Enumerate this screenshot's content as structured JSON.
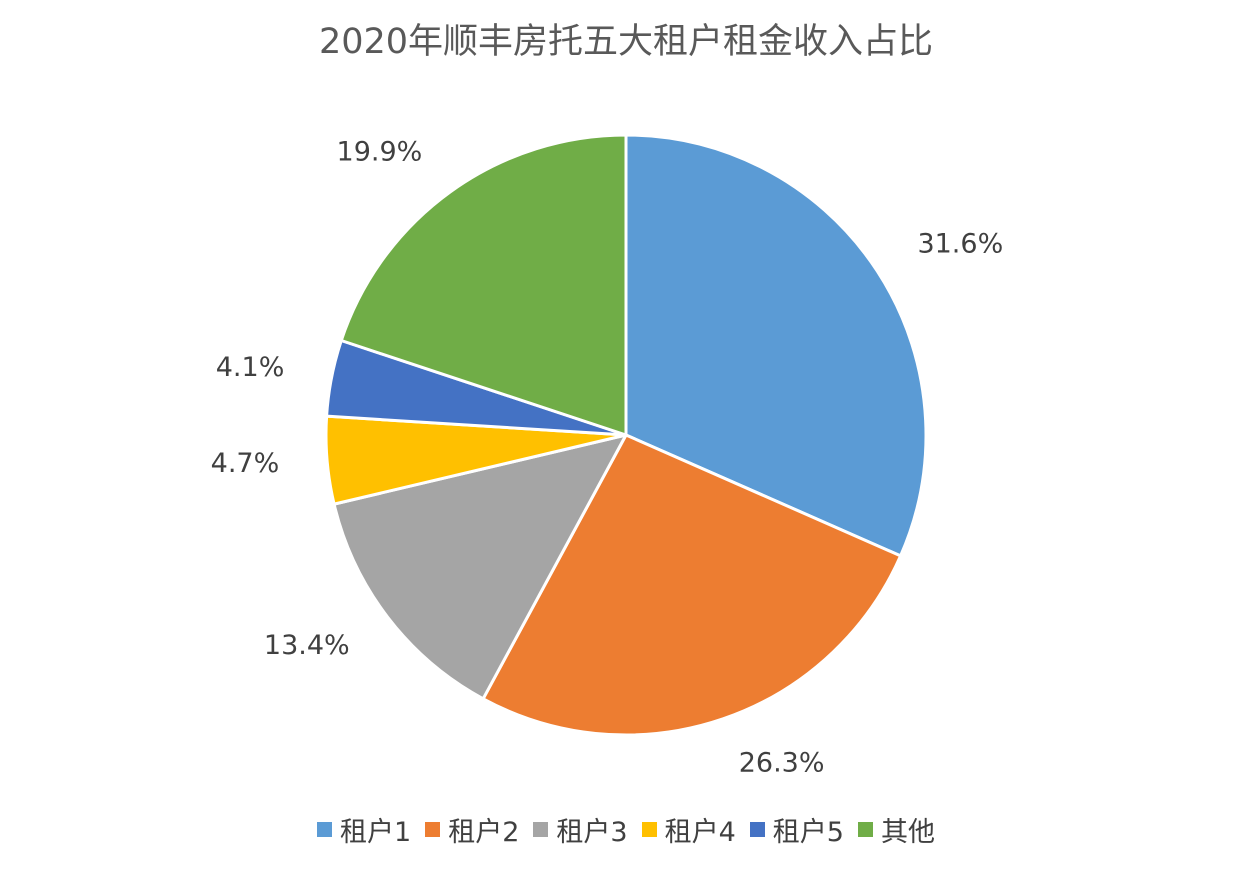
{
  "chart_data": {
    "type": "pie",
    "title": "2020年顺丰房托五大租户租金收入占比",
    "categories": [
      "租户1",
      "租户2",
      "租户3",
      "租户4",
      "租户5",
      "其他"
    ],
    "values": [
      31.6,
      26.3,
      13.4,
      4.7,
      4.1,
      19.9
    ],
    "labels": [
      "31.6%",
      "26.3%",
      "13.4%",
      "4.7%",
      "4.1%",
      "19.9%"
    ],
    "colors": [
      "#5B9BD5",
      "#ED7D31",
      "#A5A5A5",
      "#FFC000",
      "#4472C4",
      "#70AD47"
    ],
    "legend_position": "bottom",
    "start_angle": "12 o'clock",
    "direction": "clockwise"
  }
}
